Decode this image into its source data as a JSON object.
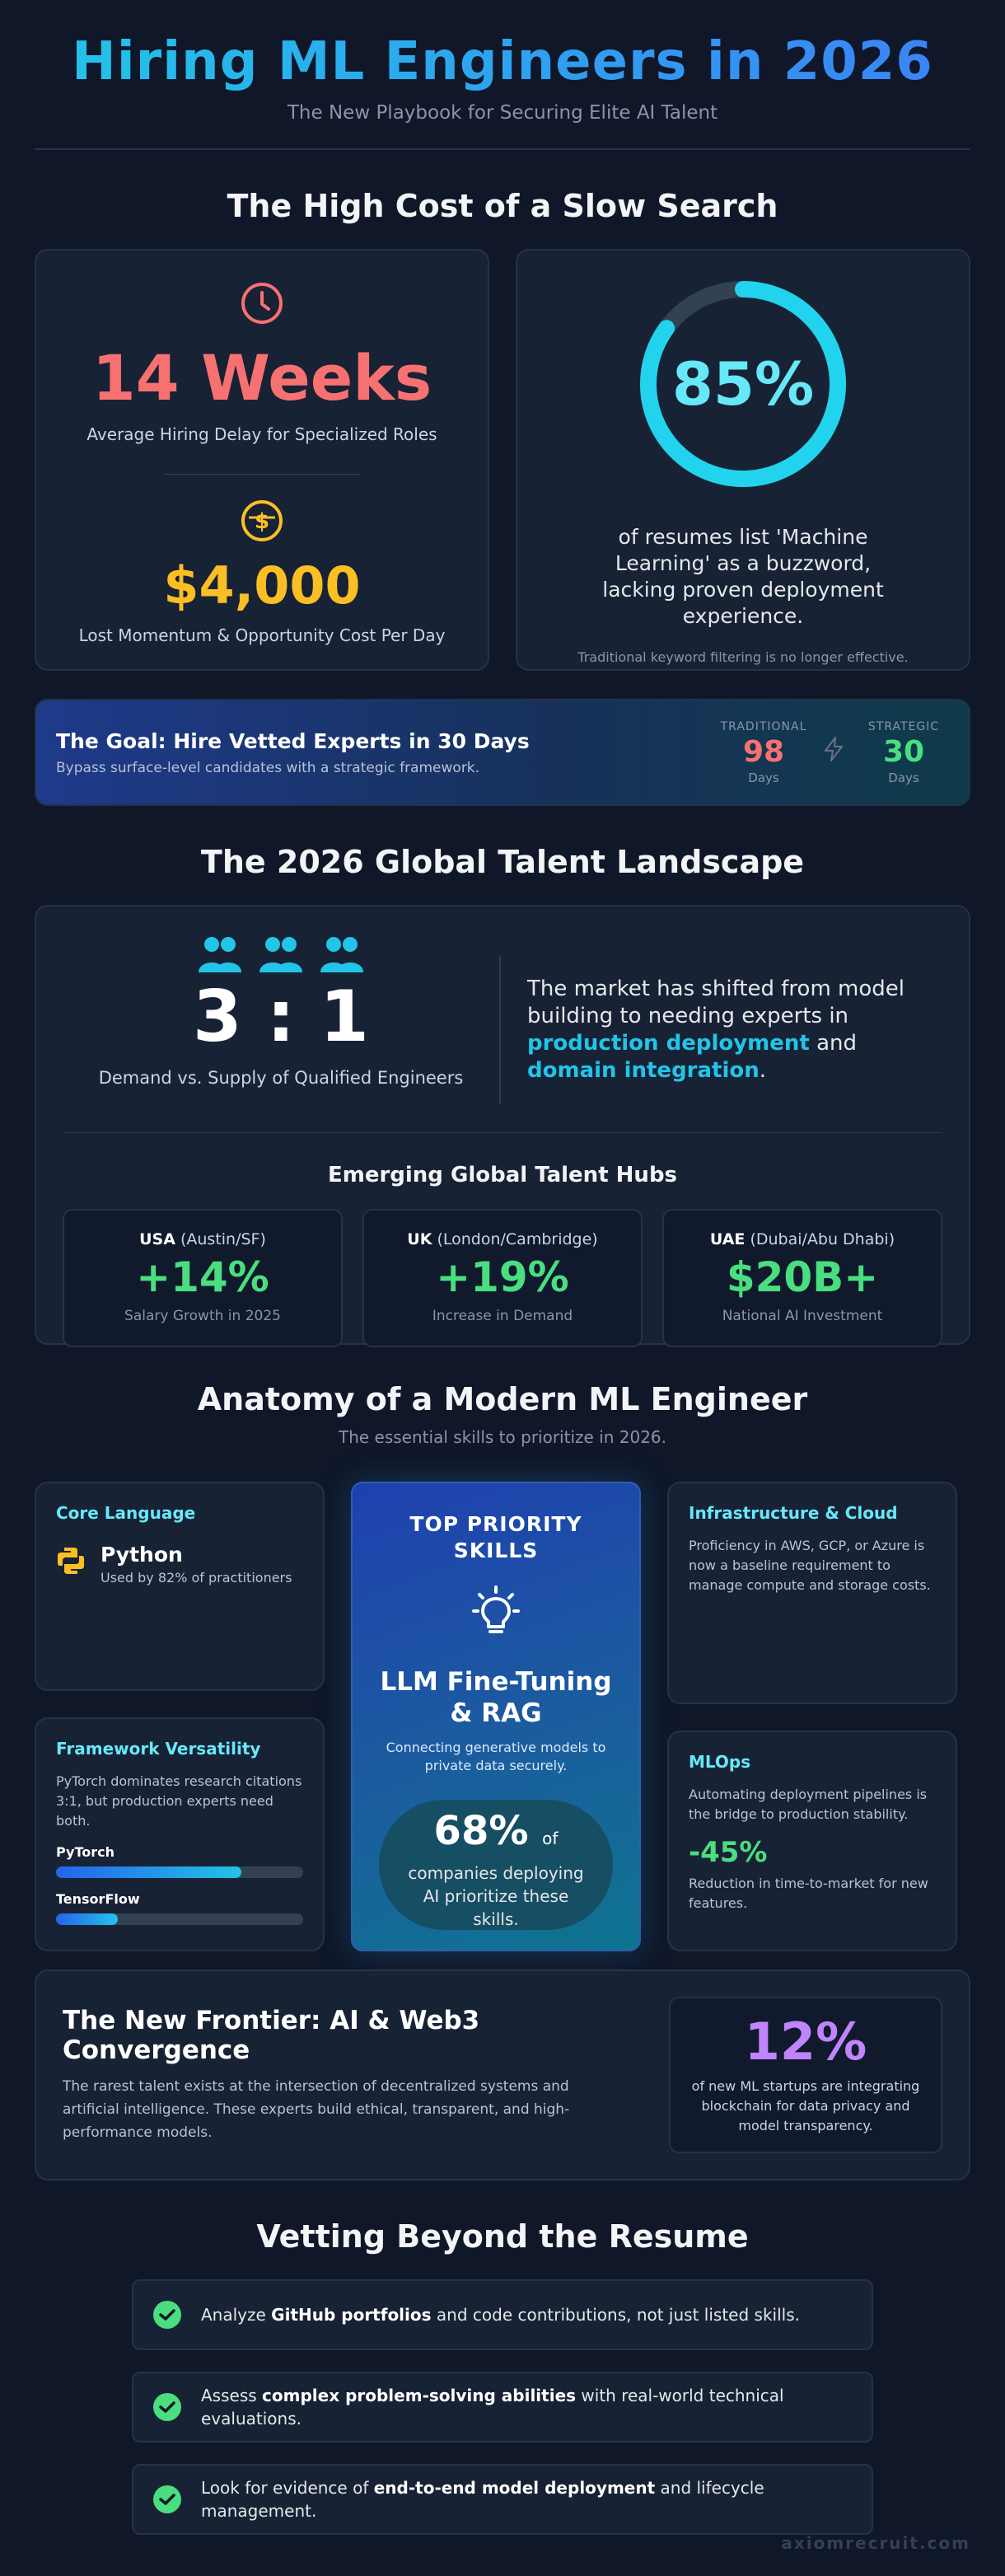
{
  "header": {
    "title": "Hiring ML Engineers in 2026",
    "subtitle": "The New Playbook for Securing Elite AI Talent"
  },
  "cost": {
    "title": "The High Cost of a Slow Search",
    "weeks_value": "14 Weeks",
    "weeks_caption": "Average Hiring Delay for Specialized Roles",
    "money_value": "$4,000",
    "money_caption": "Lost Momentum & Opportunity Cost Per Day",
    "pct_value": "85%",
    "pct_fraction": 0.85,
    "pct_caption": "of resumes list 'Machine Learning' as a buzzword, lacking proven deployment experience.",
    "pct_note": "Traditional keyword filtering is no longer effective."
  },
  "goal": {
    "title": "The Goal: Hire Vetted Experts in 30 Days",
    "desc": "Bypass surface-level candidates with a strategic framework.",
    "traditional_label": "TRADITIONAL",
    "traditional_value": "98",
    "traditional_unit": "Days",
    "strategic_label": "STRATEGIC",
    "strategic_value": "30",
    "strategic_unit": "Days"
  },
  "landscape": {
    "title": "The 2026 Global Talent Landscape",
    "ratio": "3 : 1",
    "ratio_caption": "Demand vs. Supply of Qualified Engineers",
    "market_text_1": "The market has shifted from model building to needing experts in ",
    "market_hl_1": "production deployment",
    "market_text_2": " and ",
    "market_hl_2": "domain integration",
    "market_text_3": ".",
    "hubs_title": "Emerging Global Talent Hubs",
    "hubs": [
      {
        "country": "USA",
        "cities": " (Austin/SF)",
        "value": "+14%",
        "caption": "Salary Growth in 2025"
      },
      {
        "country": "UK",
        "cities": " (London/Cambridge)",
        "value": "+19%",
        "caption": "Increase in Demand"
      },
      {
        "country": "UAE",
        "cities": " (Dubai/Abu Dhabi)",
        "value": "$20B+",
        "caption": "National AI Investment"
      }
    ]
  },
  "anatomy": {
    "title": "Anatomy of a Modern ML Engineer",
    "subtitle": "The essential skills to prioritize in 2026.",
    "core": {
      "title": "Core Language",
      "name": "Python",
      "caption": "Used by 82% of practitioners"
    },
    "framework": {
      "title": "Framework Versatility",
      "text": "PyTorch dominates research citations 3:1, but production experts need both.",
      "pytorch_label": "PyTorch",
      "pytorch_level": 0.75,
      "tensorflow_label": "TensorFlow",
      "tensorflow_level": 0.25
    },
    "priority": {
      "title": "TOP PRIORITY SKILLS",
      "skill": "LLM Fine-Tuning & RAG",
      "desc": "Connecting generative models to private data securely.",
      "pct": "68%",
      "pct_of": "of",
      "pct_caption": "companies deploying AI prioritize these skills."
    },
    "infra": {
      "title": "Infrastructure & Cloud",
      "text": "Proficiency in AWS, GCP, or Azure is now a baseline requirement to manage compute and storage costs."
    },
    "mlops": {
      "title": "MLOps",
      "text": "Automating deployment pipelines is the bridge to production stability.",
      "value": "-45%",
      "caption": "Reduction in time-to-market for new features."
    }
  },
  "frontier": {
    "title": "The New Frontier: AI & Web3 Convergence",
    "text": "The rarest talent exists at the intersection of decentralized systems and artificial intelligence. These experts build ethical, transparent, and high-performance models.",
    "value": "12%",
    "caption": "of new ML startups are integrating blockchain for data privacy and model transparency."
  },
  "vetting": {
    "title": "Vetting Beyond the Resume",
    "items": [
      {
        "pre": "Analyze ",
        "bold": "GitHub portfolios",
        "post": " and code contributions, not just listed skills."
      },
      {
        "pre": "Assess ",
        "bold": "complex problem-solving abilities",
        "post": " with real-world technical evaluations."
      },
      {
        "pre": "Look for evidence of ",
        "bold": "end-to-end model deployment",
        "post": " and lifecycle management."
      }
    ]
  },
  "footer": "axiomrecruit.com",
  "colors": {
    "background": "#0f1729",
    "card": "#182235",
    "cyan": "#22c4e8",
    "red": "#f87171",
    "yellow": "#fbbf24",
    "green": "#4ade80",
    "purple": "#c084fc"
  }
}
